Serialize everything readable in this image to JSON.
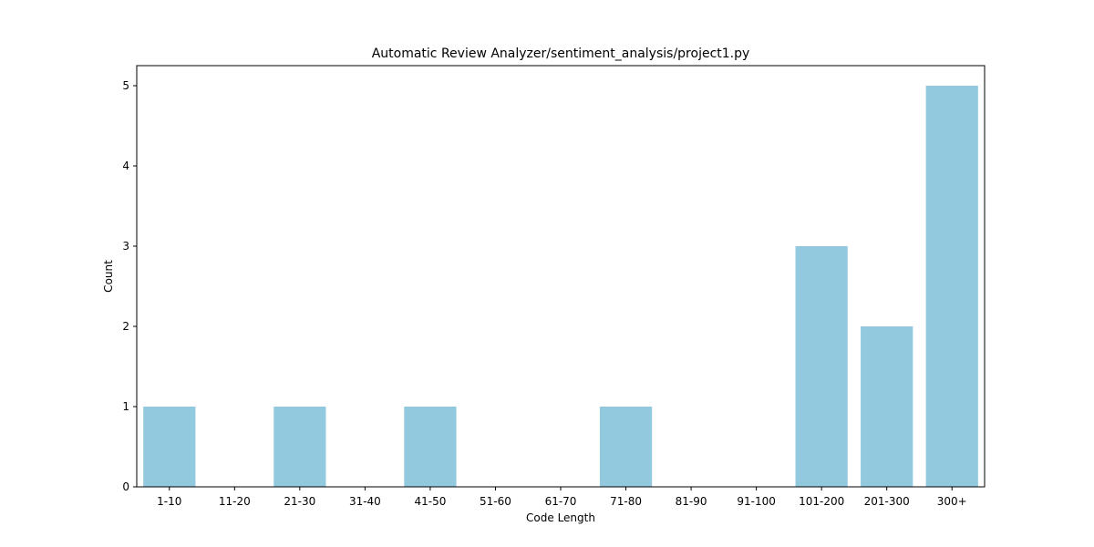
{
  "chart_data": {
    "type": "bar",
    "title": "Automatic Review Analyzer/sentiment_analysis/project1.py",
    "xlabel": "Code Length",
    "ylabel": "Count",
    "categories": [
      "1-10",
      "11-20",
      "21-30",
      "31-40",
      "41-50",
      "51-60",
      "61-70",
      "71-80",
      "81-90",
      "91-100",
      "101-200",
      "201-300",
      "300+"
    ],
    "values": [
      1,
      0,
      1,
      0,
      1,
      0,
      0,
      1,
      0,
      0,
      3,
      2,
      5
    ],
    "yticks": [
      "0",
      "1",
      "2",
      "3",
      "4",
      "5"
    ],
    "ylim": [
      0,
      5.25
    ],
    "grid": false,
    "bar_color": "#92c9df"
  }
}
